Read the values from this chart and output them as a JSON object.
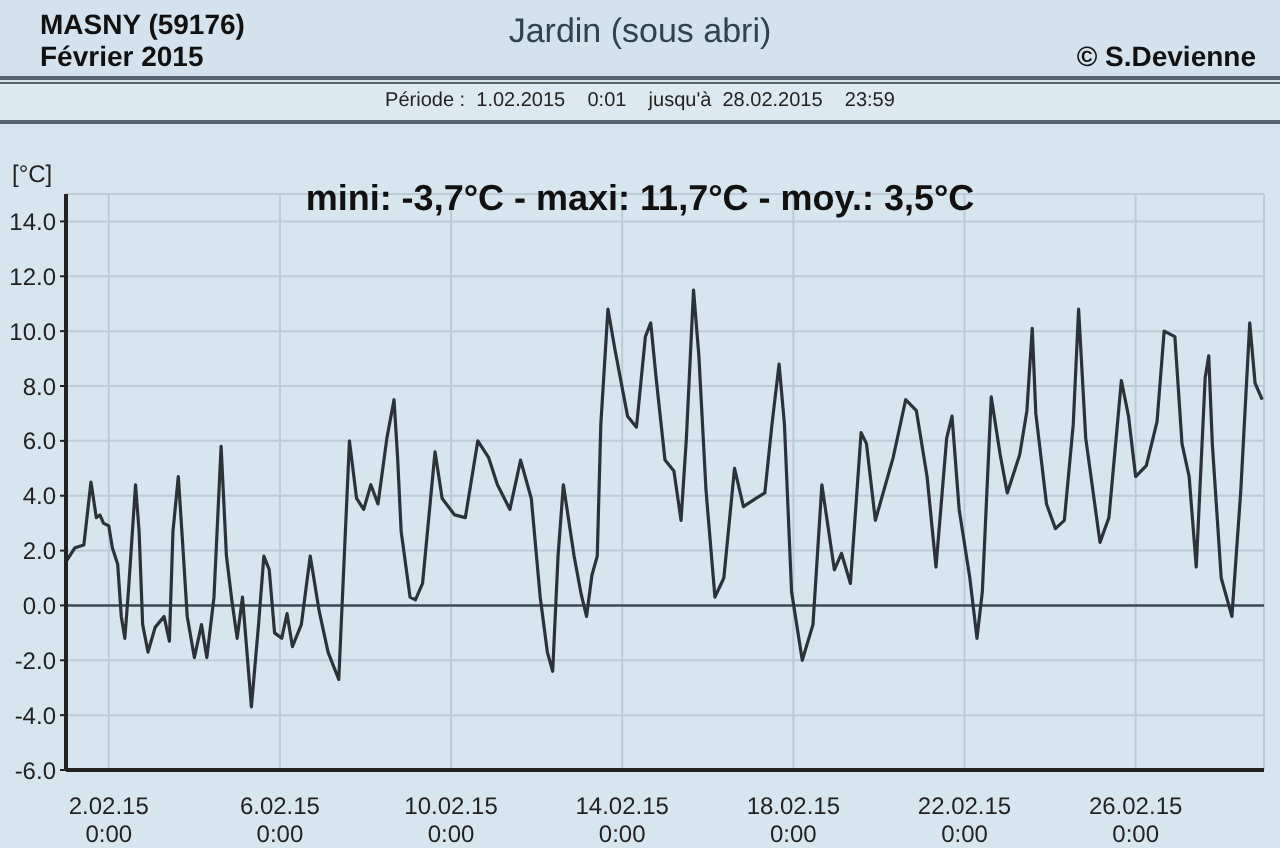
{
  "chart_data": {
    "type": "line",
    "title": "Jardin (sous abri)",
    "ylabel": "[°C]",
    "annotations": [
      "MASNY (59176)",
      "Février  2015",
      "© S.Devienne",
      "Période :  1.02.2015    0:01    jusqu'à  28.02.2015    23:59",
      "mini:  -3,7°C - maxi: 11,7°C - moy.: 3,5°C"
    ],
    "xlim": [
      "2015-02-01T00:00",
      "2015-03-01T00:00"
    ],
    "xticks": [
      {
        "value": "2015-02-02T00:00",
        "label": "2.02.15\n0:00"
      },
      {
        "value": "2015-02-06T00:00",
        "label": "6.02.15\n0:00"
      },
      {
        "value": "2015-02-10T00:00",
        "label": "10.02.15\n0:00"
      },
      {
        "value": "2015-02-14T00:00",
        "label": "14.02.15\n0:00"
      },
      {
        "value": "2015-02-18T00:00",
        "label": "18.02.15\n0:00"
      },
      {
        "value": "2015-02-22T00:00",
        "label": "22.02.15\n0:00"
      },
      {
        "value": "2015-02-26T00:00",
        "label": "26.02.15\n0:00"
      }
    ],
    "ylim": [
      -6,
      15
    ],
    "yticks": [
      {
        "value": -6,
        "label": "-6.0"
      },
      {
        "value": -4,
        "label": "-4.0"
      },
      {
        "value": -2,
        "label": "-2.0"
      },
      {
        "value": 0,
        "label": "0.0"
      },
      {
        "value": 2,
        "label": "2.0"
      },
      {
        "value": 4,
        "label": "4.0"
      },
      {
        "value": 6,
        "label": "6.0"
      },
      {
        "value": 8,
        "label": "8.0"
      },
      {
        "value": 10,
        "label": "10.0"
      },
      {
        "value": 12,
        "label": "12.0"
      },
      {
        "value": 14,
        "label": "14.0"
      }
    ],
    "grid": true,
    "marker": "none",
    "line_style": "solid",
    "ref_lines": [
      {
        "axis": "y",
        "value": 0,
        "color": "#3d4b55"
      }
    ],
    "series": [
      {
        "color": "#2b3338",
        "x": [
          "2015-02-01T00:00",
          "2015-02-01T05:00",
          "2015-02-01T10:00",
          "2015-02-01T14:00",
          "2015-02-01T17:00",
          "2015-02-01T19:00",
          "2015-02-01T21:00",
          "2015-02-02T00:00",
          "2015-02-02T02:00",
          "2015-02-02T05:00",
          "2015-02-02T07:00",
          "2015-02-02T09:00",
          "2015-02-02T11:00",
          "2015-02-02T15:00",
          "2015-02-02T17:00",
          "2015-02-02T19:00",
          "2015-02-02T22:00",
          "2015-02-03T02:00",
          "2015-02-03T07:00",
          "2015-02-03T10:00",
          "2015-02-03T12:00",
          "2015-02-03T15:00",
          "2015-02-03T17:00",
          "2015-02-03T20:00",
          "2015-02-04T00:00",
          "2015-02-04T04:00",
          "2015-02-04T07:00",
          "2015-02-04T11:00",
          "2015-02-04T15:00",
          "2015-02-04T18:00",
          "2015-02-04T21:00",
          "2015-02-05T00:00",
          "2015-02-05T03:00",
          "2015-02-05T08:00",
          "2015-02-05T12:00",
          "2015-02-05T15:00",
          "2015-02-05T18:00",
          "2015-02-05T21:00",
          "2015-02-06T01:00",
          "2015-02-06T04:00",
          "2015-02-06T07:00",
          "2015-02-06T12:00",
          "2015-02-06T17:00",
          "2015-02-06T22:00",
          "2015-02-07T03:00",
          "2015-02-07T09:00",
          "2015-02-07T15:00",
          "2015-02-07T19:00",
          "2015-02-07T23:00",
          "2015-02-08T03:00",
          "2015-02-08T07:00",
          "2015-02-08T12:00",
          "2015-02-08T16:00",
          "2015-02-08T18:00",
          "2015-02-08T20:00",
          "2015-02-09T01:00",
          "2015-02-09T04:00",
          "2015-02-09T08:00",
          "2015-02-09T15:00",
          "2015-02-09T19:00",
          "2015-02-10T02:00",
          "2015-02-10T08:00",
          "2015-02-10T15:00",
          "2015-02-10T21:00",
          "2015-02-11T02:00",
          "2015-02-11T09:00",
          "2015-02-11T15:00",
          "2015-02-11T21:00",
          "2015-02-12T02:00",
          "2015-02-12T06:00",
          "2015-02-12T09:00",
          "2015-02-12T12:00",
          "2015-02-12T15:00",
          "2015-02-12T21:00",
          "2015-02-13T01:00",
          "2015-02-13T04:00",
          "2015-02-13T07:00",
          "2015-02-13T10:00",
          "2015-02-13T12:00",
          "2015-02-13T16:00",
          "2015-02-13T20:00",
          "2015-02-14T03:00",
          "2015-02-14T08:00",
          "2015-02-14T13:00",
          "2015-02-14T16:00",
          "2015-02-14T19:00",
          "2015-02-15T00:00",
          "2015-02-15T05:00",
          "2015-02-15T09:00",
          "2015-02-15T12:00",
          "2015-02-15T16:00",
          "2015-02-15T19:00",
          "2015-02-15T23:00",
          "2015-02-16T04:00",
          "2015-02-16T09:00",
          "2015-02-16T15:00",
          "2015-02-16T20:00",
          "2015-02-17T03:00",
          "2015-02-17T08:00",
          "2015-02-17T12:00",
          "2015-02-17T16:00",
          "2015-02-17T19:00",
          "2015-02-17T23:00",
          "2015-02-18T05:00",
          "2015-02-18T11:00",
          "2015-02-18T16:00",
          "2015-02-18T23:00",
          "2015-02-19T03:00",
          "2015-02-19T08:00",
          "2015-02-19T14:00",
          "2015-02-19T17:00",
          "2015-02-19T22:00",
          "2015-02-20T08:00",
          "2015-02-20T15:00",
          "2015-02-20T21:00",
          "2015-02-21T03:00",
          "2015-02-21T08:00",
          "2015-02-21T14:00",
          "2015-02-21T17:00",
          "2015-02-21T21:00",
          "2015-02-22T03:00",
          "2015-02-22T07:00",
          "2015-02-22T10:00",
          "2015-02-22T15:00",
          "2015-02-22T20:00",
          "2015-02-23T00:00",
          "2015-02-23T07:00",
          "2015-02-23T11:00",
          "2015-02-23T14:00",
          "2015-02-23T16:00",
          "2015-02-23T22:00",
          "2015-02-24T03:00",
          "2015-02-24T08:00",
          "2015-02-24T13:00",
          "2015-02-24T16:00",
          "2015-02-24T20:00",
          "2015-02-25T04:00",
          "2015-02-25T09:00",
          "2015-02-25T16:00",
          "2015-02-25T20:00",
          "2015-02-26T00:00",
          "2015-02-26T06:00",
          "2015-02-26T12:00",
          "2015-02-26T16:00",
          "2015-02-26T22:00",
          "2015-02-27T02:00",
          "2015-02-27T06:00",
          "2015-02-27T10:00",
          "2015-02-27T15:00",
          "2015-02-27T17:00",
          "2015-02-27T19:00",
          "2015-02-28T00:00",
          "2015-02-28T06:00",
          "2015-02-28T11:00",
          "2015-02-28T16:00",
          "2015-02-28T19:00",
          "2015-02-28T23:00"
        ],
        "values": [
          1.6,
          2.1,
          2.2,
          4.5,
          3.2,
          3.3,
          3.0,
          2.9,
          2.1,
          1.5,
          -0.4,
          -1.2,
          0.5,
          4.4,
          2.7,
          -0.7,
          -1.7,
          -0.8,
          -0.4,
          -1.3,
          2.7,
          4.7,
          2.7,
          -0.4,
          -1.9,
          -0.7,
          -1.9,
          0.3,
          5.8,
          1.8,
          0.2,
          -1.2,
          0.3,
          -3.7,
          -0.7,
          1.8,
          1.3,
          -1.0,
          -1.2,
          -0.3,
          -1.5,
          -0.7,
          1.8,
          -0.2,
          -1.7,
          -2.7,
          6.0,
          3.9,
          3.5,
          4.4,
          3.7,
          6.1,
          7.5,
          5.4,
          2.7,
          0.3,
          0.2,
          0.8,
          5.6,
          3.9,
          3.3,
          3.2,
          6.0,
          5.4,
          4.4,
          3.5,
          5.3,
          3.9,
          0.3,
          -1.7,
          -2.4,
          1.8,
          4.4,
          1.8,
          0.4,
          -0.4,
          1.1,
          1.8,
          6.6,
          10.8,
          9.3,
          6.9,
          6.5,
          9.8,
          10.3,
          8.3,
          5.3,
          4.9,
          3.1,
          6.1,
          11.5,
          9.1,
          4.2,
          0.3,
          1.0,
          5.0,
          3.6,
          3.9,
          4.1,
          6.6,
          8.8,
          6.6,
          0.5,
          -2.0,
          -0.7,
          4.4,
          1.3,
          1.9,
          0.8,
          6.3,
          5.9,
          3.1,
          5.4,
          7.5,
          7.1,
          4.7,
          1.4,
          6.1,
          6.9,
          3.5,
          1.0,
          -1.2,
          0.5,
          7.6,
          5.5,
          4.1,
          5.5,
          7.1,
          10.1,
          7.0,
          3.7,
          2.8,
          3.1,
          6.6,
          10.8,
          6.1,
          2.3,
          3.2,
          8.2,
          6.9,
          4.7,
          5.1,
          6.7,
          10.0,
          9.8,
          5.9,
          4.7,
          1.4,
          8.3,
          9.1,
          5.9,
          1.0,
          -0.4,
          4.2,
          10.3,
          8.1,
          7.5
        ]
      }
    ]
  }
}
